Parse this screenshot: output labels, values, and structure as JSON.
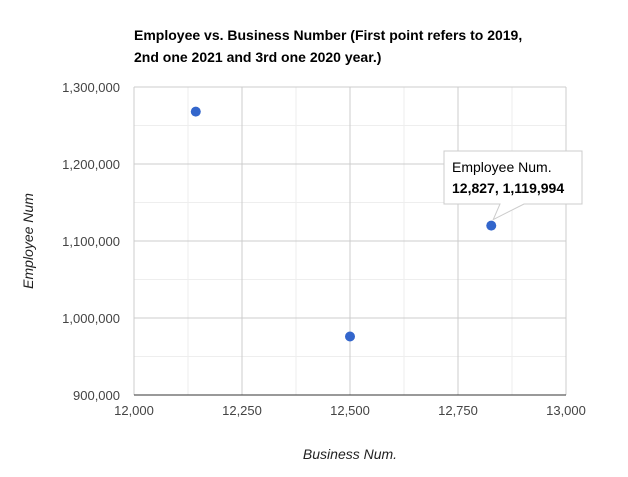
{
  "chart_data": {
    "type": "scatter",
    "title_lines": [
      "Employee vs. Business Number (First point refers to 2019,",
      "2nd one 2021 and 3rd one 2020 year.)"
    ],
    "xlabel": "Business Num.",
    "ylabel": "Employee Num",
    "xlim": [
      12000,
      13000
    ],
    "ylim": [
      900000,
      1300000
    ],
    "x_ticks": [
      12000,
      12250,
      12500,
      12750,
      13000
    ],
    "x_tick_labels": [
      "12,000",
      "12,250",
      "12,500",
      "12,750",
      "13,000"
    ],
    "y_ticks": [
      900000,
      1000000,
      1100000,
      1200000,
      1300000
    ],
    "y_tick_labels": [
      "900,000",
      "1,000,000",
      "1,100,000",
      "1,200,000",
      "1,300,000"
    ],
    "grid": true,
    "minor_grid": true,
    "point_color": "#3366cc",
    "points": [
      {
        "x": 12143,
        "y": 1268000
      },
      {
        "x": 12500,
        "y": 976000
      },
      {
        "x": 12827,
        "y": 1119994
      }
    ],
    "tooltip": {
      "label": "Employee Num.",
      "value": "12,827, 1,119,994",
      "point_index": 2
    }
  }
}
